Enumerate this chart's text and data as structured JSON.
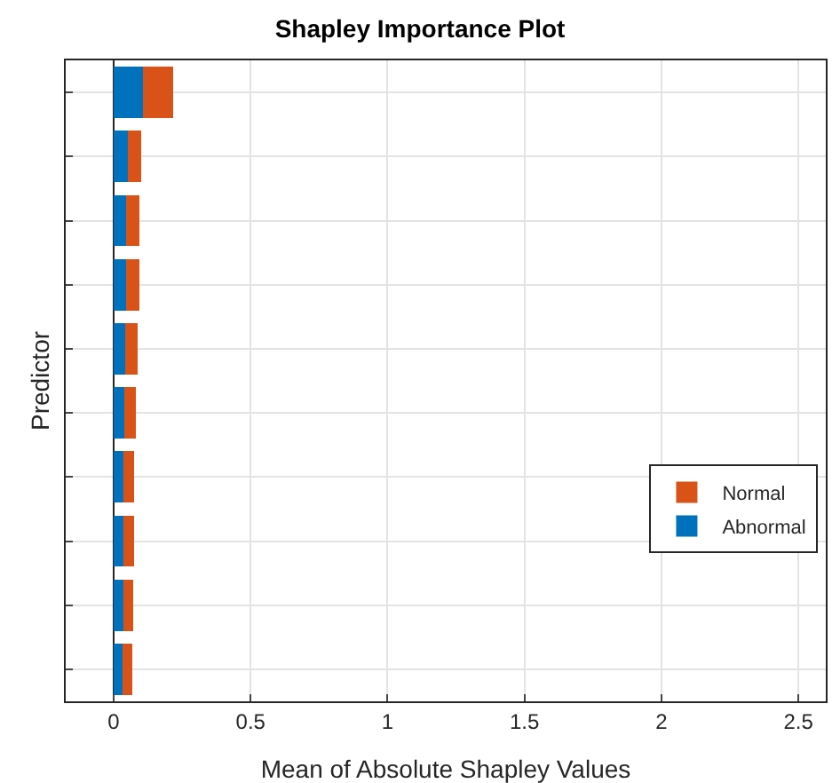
{
  "chart_data": {
    "type": "bar",
    "orientation": "horizontal",
    "stacked": true,
    "title": "Shapley Importance Plot",
    "xlabel": "Mean of Absolute Shapley Values",
    "ylabel": "Predictor",
    "categories": [
      null,
      null,
      null,
      null,
      null,
      null,
      null,
      null,
      null,
      null
    ],
    "series": [
      {
        "name": "Abnormal",
        "color": "#0072bd",
        "values": [
          0.108,
          0.052,
          0.045,
          0.045,
          0.043,
          0.039,
          0.037,
          0.037,
          0.035,
          0.034
        ]
      },
      {
        "name": "Normal",
        "color": "#d95319",
        "values": [
          0.11,
          0.05,
          0.05,
          0.05,
          0.044,
          0.043,
          0.039,
          0.037,
          0.035,
          0.034
        ]
      }
    ],
    "xlim": [
      -0.175,
      2.6
    ],
    "xticks": [
      0,
      0.5,
      1,
      1.5,
      2,
      2.5
    ],
    "grid": true,
    "legend": "right",
    "tick_labels": "x"
  }
}
